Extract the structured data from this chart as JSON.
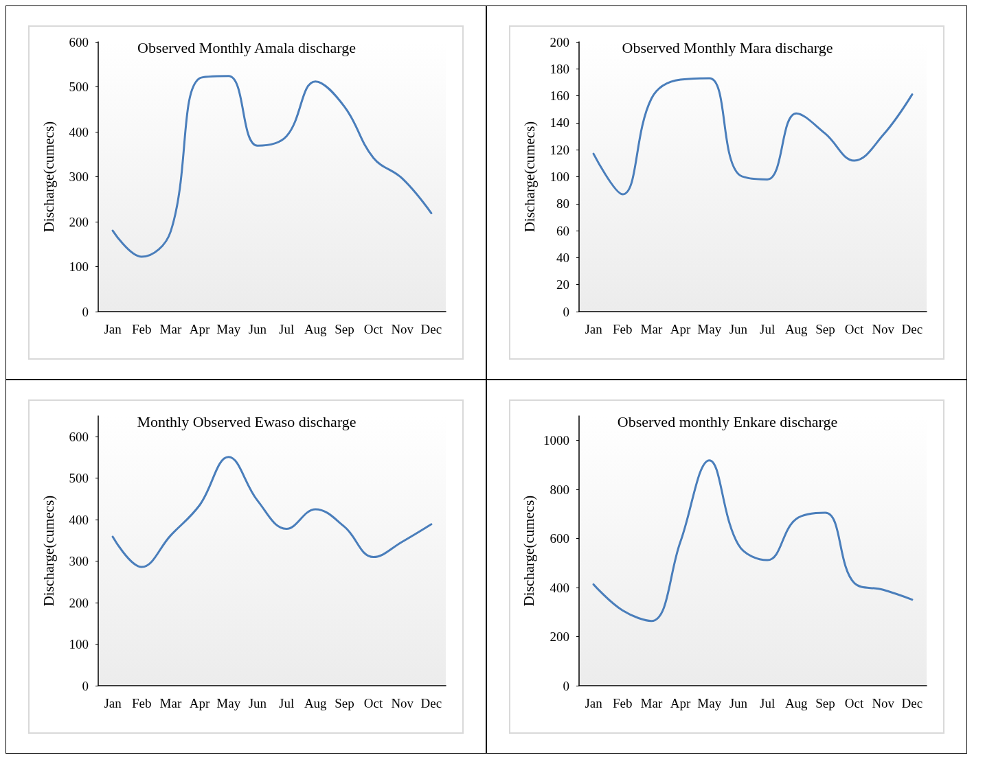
{
  "chart_data": [
    {
      "type": "line",
      "title": "Observed Monthly Amala discharge",
      "ylabel": "Discharge(cumecs)",
      "categories": [
        "Jan",
        "Feb",
        "Mar",
        "Apr",
        "May",
        "Jun",
        "Jul",
        "Aug",
        "Sep",
        "Oct",
        "Nov",
        "Dec"
      ],
      "series": [
        {
          "color": "#4a7ebb",
          "values": [
            180,
            122,
            178,
            519,
            524,
            369,
            390,
            512,
            456,
            342,
            296,
            219
          ]
        }
      ],
      "ylim": [
        0,
        600
      ],
      "yticks": [
        0,
        100,
        200,
        300,
        400,
        500,
        600
      ],
      "line_style": "solid"
    },
    {
      "type": "line",
      "title": "Observed Monthly Mara discharge",
      "ylabel": "Discharge(cumecs)",
      "categories": [
        "Jan",
        "Feb",
        "Mar",
        "Apr",
        "May",
        "Jun",
        "Jul",
        "Aug",
        "Sep",
        "Oct",
        "Nov",
        "Dec"
      ],
      "series": [
        {
          "color": "#4a7ebb",
          "values": [
            117,
            87,
            158,
            172,
            173,
            102,
            98,
            147,
            132,
            112,
            131,
            161
          ]
        }
      ],
      "ylim": [
        0,
        200
      ],
      "yticks": [
        0,
        20,
        40,
        60,
        80,
        100,
        120,
        140,
        160,
        180,
        200
      ],
      "line_style": "solid"
    },
    {
      "type": "line",
      "title": "Monthly Observed Ewaso discharge",
      "ylabel": "Discharge(cumecs)",
      "categories": [
        "Jan",
        "Feb",
        "Mar",
        "Apr",
        "May",
        "Jun",
        "Jul",
        "Aug",
        "Sep",
        "Oct",
        "Nov",
        "Dec"
      ],
      "series": [
        {
          "color": "#4a7ebb",
          "values": [
            359,
            286,
            362,
            435,
            551,
            446,
            378,
            425,
            383,
            310,
            347,
            389
          ]
        }
      ],
      "ylim": [
        0,
        650
      ],
      "yticks": [
        0,
        100,
        200,
        300,
        400,
        500,
        600
      ],
      "line_style": "solid"
    },
    {
      "type": "line",
      "title": "Observed monthly Enkare discharge",
      "ylabel": "Discharge(cumecs)",
      "categories": [
        "Jan",
        "Feb",
        "Mar",
        "Apr",
        "May",
        "Jun",
        "Jul",
        "Aug",
        "Sep",
        "Oct",
        "Nov",
        "Dec"
      ],
      "series": [
        {
          "color": "#4a7ebb",
          "values": [
            413,
            307,
            264,
            587,
            919,
            575,
            512,
            680,
            705,
            419,
            391,
            351
          ]
        }
      ],
      "ylim": [
        0,
        1100
      ],
      "yticks": [
        0,
        200,
        400,
        600,
        800,
        1000
      ],
      "line_style": "solid"
    }
  ]
}
